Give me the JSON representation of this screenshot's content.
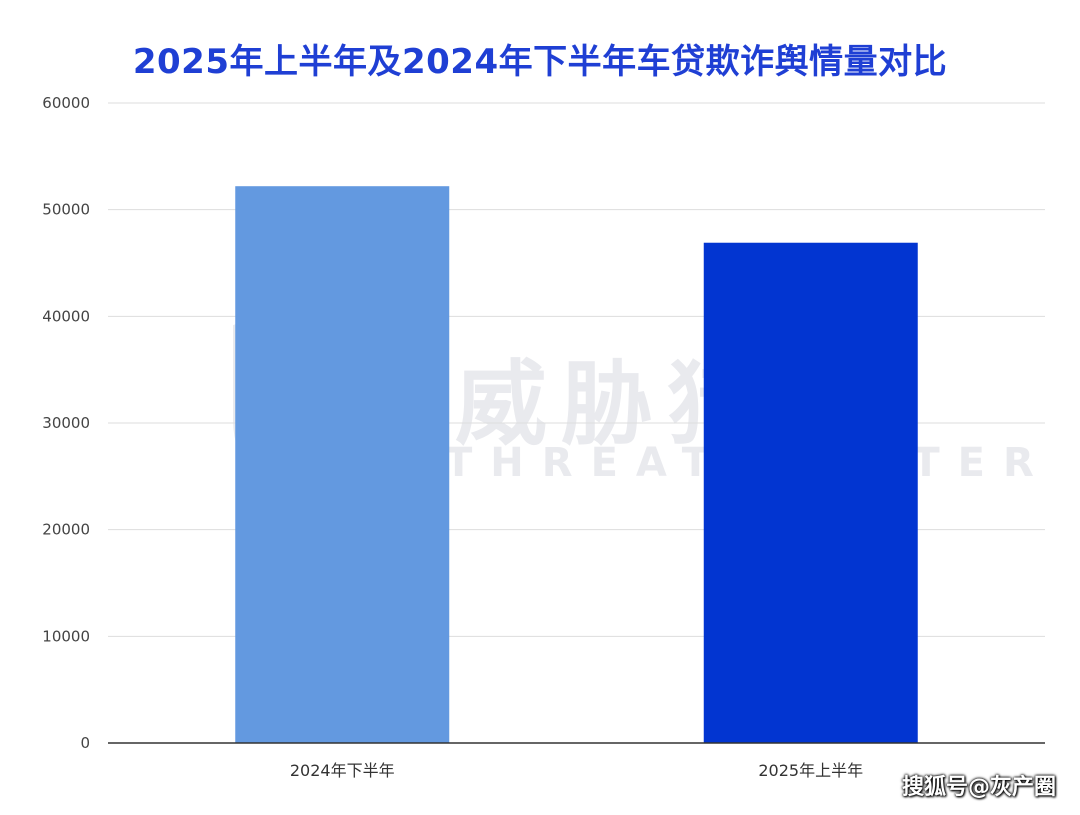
{
  "chart_data": {
    "type": "bar",
    "title": "2025年上半年及2024年下半年车贷欺诈舆情量对比",
    "categories": [
      "2024年下半年",
      "2025年上半年"
    ],
    "values": [
      52200,
      46900
    ],
    "colors": [
      "#6399e0",
      "#0235d1"
    ],
    "ylim": [
      0,
      60000
    ],
    "yticks": [
      0,
      10000,
      20000,
      30000,
      40000,
      50000,
      60000
    ],
    "grid": true,
    "xlabel": "",
    "ylabel": ""
  },
  "watermark": {
    "main": "威胁猎人",
    "sub": "THREAT HUNTER"
  },
  "source_mark": "搜狐号@灰产圈"
}
